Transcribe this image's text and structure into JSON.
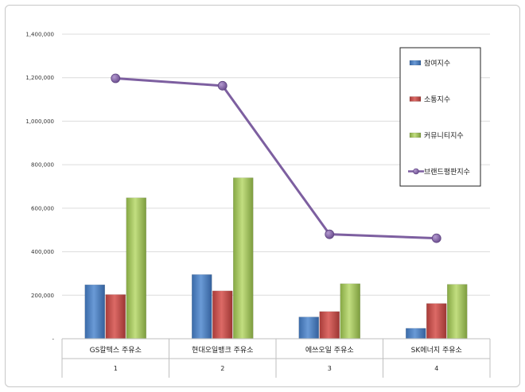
{
  "chart_data": {
    "type": "bar",
    "categories": [
      "GS칼텍스 주유소",
      "현대오일뱅크 주유소",
      "에쓰오일 주유소",
      "SK에너지 주유소"
    ],
    "category_index": [
      "1",
      "2",
      "3",
      "4"
    ],
    "series": [
      {
        "name": "참여지수",
        "type": "bar",
        "color": "#4a7ebb",
        "values": [
          248000,
          295000,
          100000,
          48000
        ]
      },
      {
        "name": "소통지수",
        "type": "bar",
        "color": "#be4b48",
        "values": [
          203000,
          220000,
          125000,
          162000
        ]
      },
      {
        "name": "커뮤니티지수",
        "type": "bar",
        "color": "#98b954",
        "values": [
          648000,
          740000,
          253000,
          250000
        ]
      },
      {
        "name": "브랜드평판지수",
        "type": "line",
        "color": "#7d5fa0",
        "values": [
          1197000,
          1163000,
          480000,
          462000
        ]
      }
    ],
    "ylim": [
      0,
      1400000
    ],
    "yticks": [
      0,
      200000,
      400000,
      600000,
      800000,
      1000000,
      1200000,
      1400000
    ],
    "ytick_labels": [
      "-",
      "200,000",
      "400,000",
      "600,000",
      "800,000",
      "1,000,000",
      "1,200,000",
      "1,400,000"
    ],
    "grid": true,
    "legend_position": "right"
  }
}
